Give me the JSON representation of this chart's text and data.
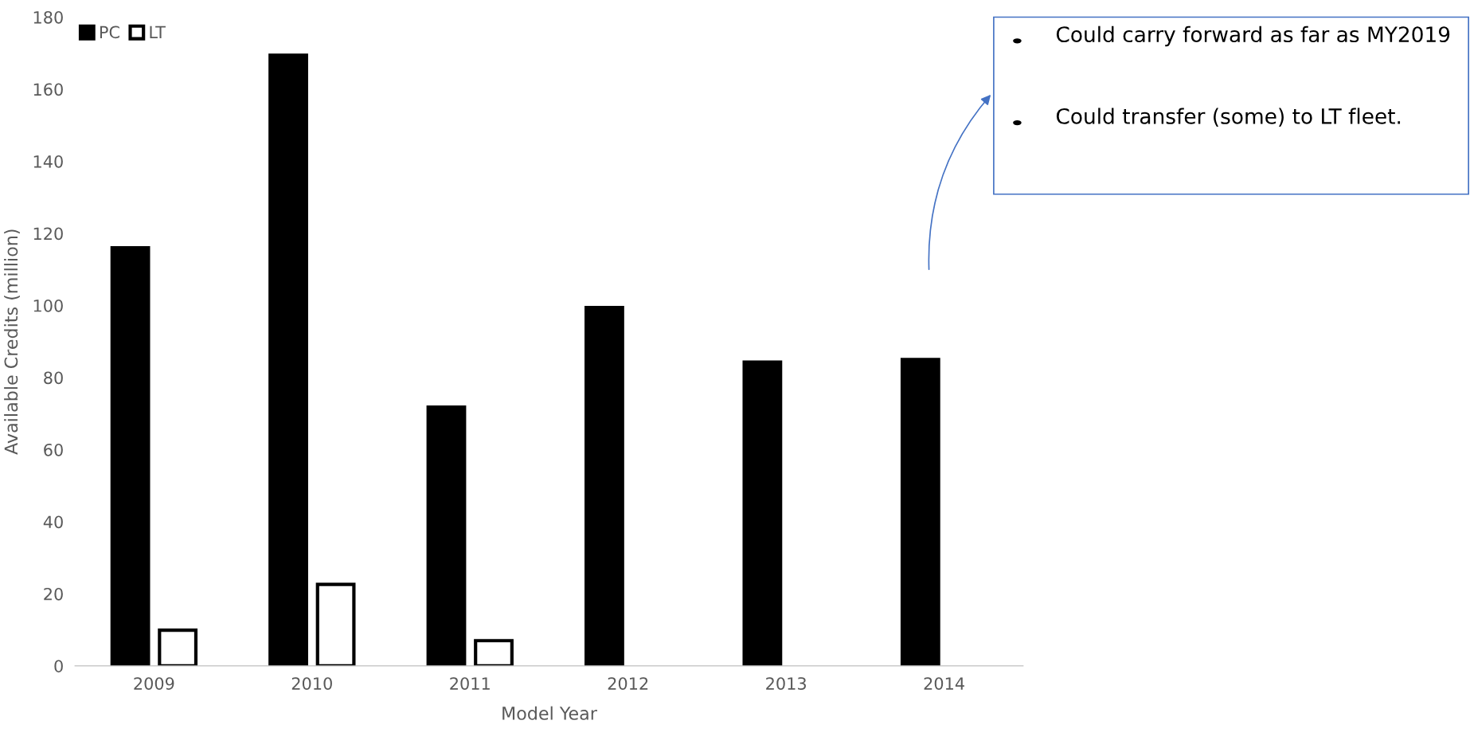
{
  "chart_data": {
    "type": "bar",
    "xlabel": "Model Year",
    "ylabel": "Available Credits (million)",
    "categories": [
      "2009",
      "2010",
      "2011",
      "2012",
      "2013",
      "2014"
    ],
    "series": [
      {
        "name": "PC",
        "color": "#000000",
        "values": [
          116,
          169.4,
          71.8,
          99.4,
          84.3,
          85
        ]
      },
      {
        "name": "LT",
        "color": "#ffffff",
        "values": [
          9.9,
          22.6,
          7.0,
          null,
          null,
          null
        ]
      }
    ],
    "ylim": [
      0,
      180
    ],
    "yticks": [
      0,
      20,
      40,
      60,
      80,
      100,
      120,
      140,
      160,
      180
    ],
    "legend": "top left",
    "annotations": [
      "Could carry forward as far as MY2019",
      "Could transfer (some) to LT fleet."
    ]
  }
}
